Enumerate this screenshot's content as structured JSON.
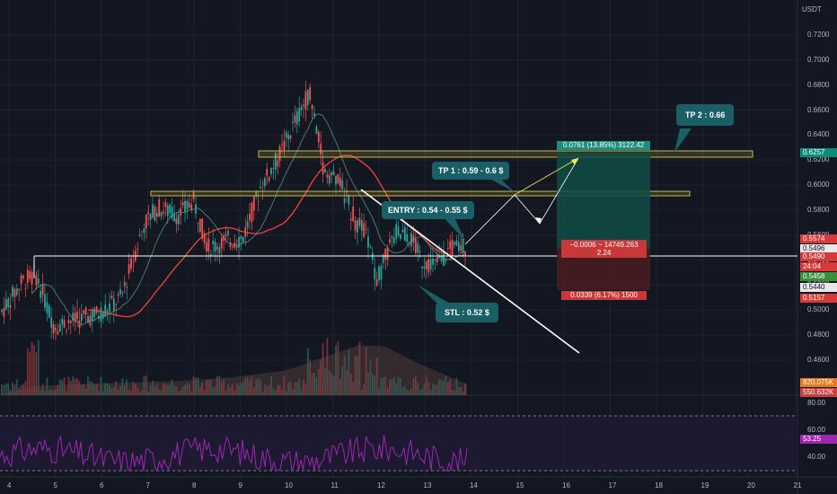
{
  "price_axis": {
    "currency": "USDT",
    "ticks": [
      "0.7200",
      "0.7000",
      "0.6800",
      "0.6600",
      "0.6400",
      "0.6200",
      "0.6000",
      "0.5800",
      "0.5600",
      "0.5400",
      "0.5200",
      "0.5000",
      "0.4800",
      "0.4600"
    ],
    "badges": [
      {
        "label": "0.6257",
        "color": "#0c8c79"
      },
      {
        "label": "0.5574",
        "color": "#d93939"
      },
      {
        "label": "0.5496",
        "color": "#e8e8e8",
        "text_color": "#131722"
      },
      {
        "label": "0.5490",
        "color": "#d93939"
      },
      {
        "label": "24:04",
        "color": "#d93939"
      },
      {
        "label": "0.5458",
        "color": "#3a8f3a"
      },
      {
        "label": "0.5440",
        "color": "#e8e8e8",
        "text_color": "#131722"
      },
      {
        "label": "0.5157",
        "color": "#d93939"
      },
      {
        "label": "820.075K",
        "color": "#e87a1e"
      },
      {
        "label": "550.632K",
        "color": "#c84040"
      }
    ]
  },
  "rsi_axis": {
    "ticks": [
      "80.00",
      "60.00",
      "40.00"
    ],
    "value_badge": "53.25"
  },
  "time_axis": {
    "ticks": [
      "4",
      "5",
      "6",
      "7",
      "8",
      "9",
      "10",
      "11",
      "12",
      "13",
      "14",
      "15",
      "16",
      "17",
      "18",
      "19",
      "20",
      "21"
    ]
  },
  "annotations": {
    "tp2": "TP 2 : 0.66",
    "tp1": "TP 1 : 0.59 - 0.6 $",
    "entry": "ENTRY : 0.54 -  0.55 $",
    "stl": "STL : 0.52 $"
  },
  "position": {
    "target_label": "0.0761 (13.85%) 3122.42",
    "middle_line1": "−0.0006 ~ 14749.263",
    "middle_line2": "2.24",
    "stop_label": "0.0339 (6.17%) 1500"
  },
  "colors": {
    "background": "#131722",
    "up": "#26a69a",
    "down": "#ef5350",
    "zone": "#c8b84a",
    "annotation": "#1a5f66",
    "rsi": "#9c27b0"
  }
}
